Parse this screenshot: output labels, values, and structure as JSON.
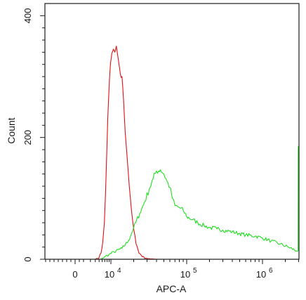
{
  "chart_data": {
    "type": "line",
    "title": "",
    "xlabel": "APC-A",
    "ylabel": "Count",
    "x_scale": "biexponential",
    "xlim": [
      -1200,
      3000000
    ],
    "ylim": [
      0,
      420
    ],
    "grid": false,
    "legend": "none",
    "y_ticks": [
      {
        "value": 0,
        "label": "0"
      },
      {
        "value": 200,
        "label": "200"
      },
      {
        "value": 400,
        "label": "400"
      }
    ],
    "x_tick_labels": [
      {
        "value": 0,
        "label": "0"
      },
      {
        "value": 10000,
        "label": "10",
        "exp": "4"
      },
      {
        "value": 100000,
        "label": "10",
        "exp": "5"
      },
      {
        "value": 1000000,
        "label": "10",
        "exp": "6"
      }
    ],
    "series": [
      {
        "color": "#e01010",
        "x": [
          4000,
          5000,
          5600,
          6200,
          6800,
          7300,
          7800,
          8300,
          8800,
          9300,
          9800,
          10300,
          10800,
          11300,
          11800,
          12300,
          12800,
          13300,
          14000,
          14700,
          15400,
          16100,
          16800,
          17500,
          18500,
          20000,
          21500,
          23500,
          26000,
          30000,
          40000
        ],
        "y": [
          0,
          3,
          10,
          28,
          60,
          110,
          170,
          230,
          268,
          300,
          322,
          338,
          345,
          340,
          350,
          335,
          320,
          305,
          300,
          260,
          210,
          180,
          150,
          120,
          85,
          50,
          25,
          10,
          4,
          1,
          0
        ]
      },
      {
        "color": "#22dd22",
        "x": [
          5500,
          7000,
          9000,
          11000,
          14000,
          17000,
          20000,
          24000,
          28000,
          32000,
          36000,
          40000,
          45000,
          50000,
          55000,
          60000,
          65000,
          70000,
          80000,
          90000,
          100000,
          120000,
          140000,
          170000,
          200000,
          250000,
          300000,
          400000,
          500000,
          600000,
          800000,
          1000000,
          1300000,
          1700000,
          2200000,
          2800000,
          2950000,
          2960000,
          2970000
        ],
        "y": [
          0,
          4,
          8,
          12,
          18,
          30,
          52,
          75,
          95,
          115,
          132,
          145,
          147,
          140,
          128,
          118,
          100,
          88,
          85,
          80,
          70,
          65,
          60,
          55,
          52,
          50,
          48,
          45,
          42,
          40,
          38,
          35,
          30,
          25,
          20,
          14,
          14,
          180,
          186
        ]
      }
    ]
  }
}
